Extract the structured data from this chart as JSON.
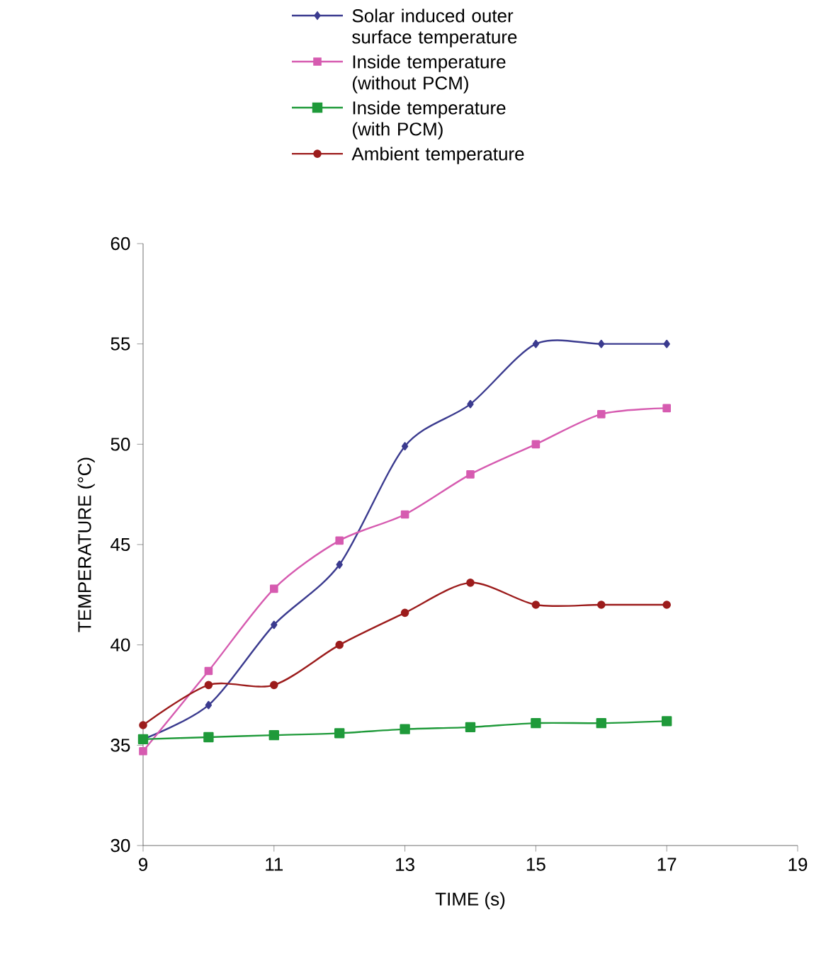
{
  "chart_data": {
    "type": "line",
    "xlabel": "TIME (s)",
    "ylabel": "TEMPERATURE (°C)",
    "x": [
      9,
      10,
      11,
      12,
      13,
      14,
      15,
      16,
      17
    ],
    "xlim": [
      9,
      19
    ],
    "xticks": [
      9,
      11,
      13,
      15,
      17,
      19
    ],
    "ylim": [
      30,
      60
    ],
    "yticks": [
      30,
      35,
      40,
      45,
      50,
      55,
      60
    ],
    "grid": false,
    "legend": "top",
    "line_style": "solid",
    "series": [
      {
        "name": "Solar induced outer surface temperature",
        "color": "#3b3b8f",
        "marker": "diamond",
        "values": [
          35.3,
          37,
          41,
          44,
          49.9,
          52,
          55,
          55,
          55
        ]
      },
      {
        "name": "Inside temperature (without PCM)",
        "color": "#d65bb0",
        "marker": "square",
        "values": [
          34.7,
          38.7,
          42.8,
          45.2,
          46.5,
          48.5,
          50,
          51.5,
          51.8
        ]
      },
      {
        "name": "Inside temperature (with PCM)",
        "color": "#1f9a3a",
        "marker": "square",
        "values": [
          35.3,
          35.4,
          35.5,
          35.6,
          35.8,
          35.9,
          36.1,
          36.1,
          36.2
        ]
      },
      {
        "name": "Ambient temperature",
        "color": "#9c1c1c",
        "marker": "circle",
        "values": [
          36,
          38,
          38,
          40,
          41.6,
          43.1,
          42,
          42,
          42
        ]
      }
    ]
  }
}
